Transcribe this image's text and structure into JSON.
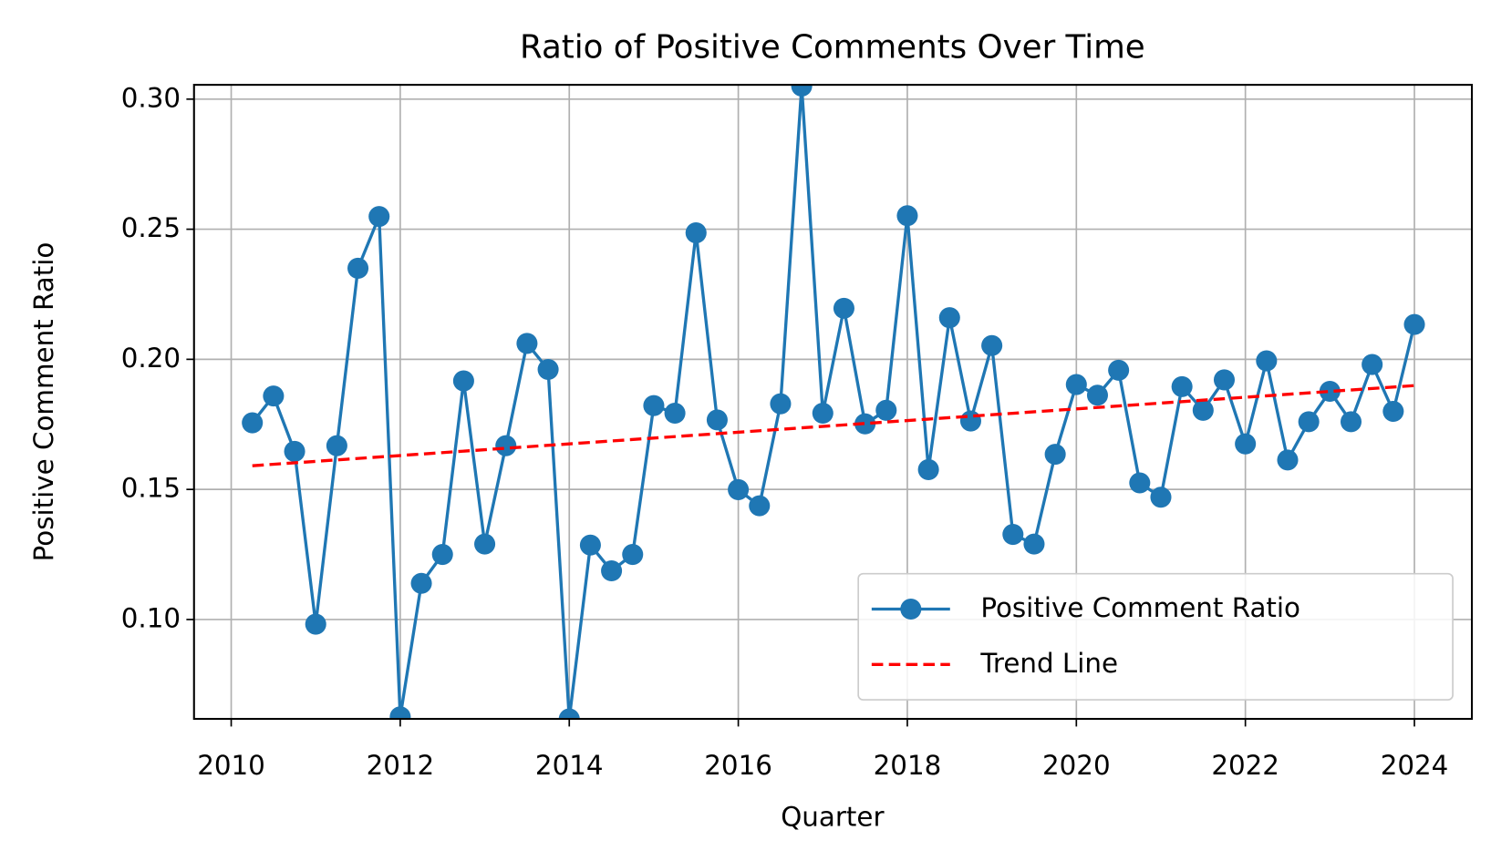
{
  "chart_data": {
    "type": "line",
    "title": "Ratio of Positive Comments Over Time",
    "xlabel": "Quarter",
    "ylabel": "Positive Comment Ratio",
    "xlim": [
      2009.56,
      2024.68
    ],
    "ylim": [
      0.0618,
      0.3055
    ],
    "xticks": [
      2010,
      2012,
      2014,
      2016,
      2018,
      2020,
      2022,
      2024
    ],
    "yticks": [
      {
        "value": 0.1,
        "label": "0.10"
      },
      {
        "value": 0.15,
        "label": "0.15"
      },
      {
        "value": 0.2,
        "label": "0.20"
      },
      {
        "value": 0.25,
        "label": "0.25"
      },
      {
        "value": 0.3,
        "label": "0.30"
      }
    ],
    "grid": true,
    "legend": "lower right",
    "series": [
      {
        "name": "Positive Comment Ratio",
        "color": "#1f77b4",
        "style": "solid",
        "marker": "circle",
        "x": [
          2010.25,
          2010.5,
          2010.75,
          2011,
          2011.25,
          2011.5,
          2011.75,
          2012,
          2012.25,
          2012.5,
          2012.75,
          2013,
          2013.25,
          2013.5,
          2013.75,
          2014,
          2014.25,
          2014.5,
          2014.75,
          2015,
          2015.25,
          2015.5,
          2015.75,
          2016,
          2016.25,
          2016.5,
          2016.75,
          2017,
          2017.25,
          2017.5,
          2017.75,
          2018,
          2018.25,
          2018.5,
          2018.75,
          2019,
          2019.25,
          2019.5,
          2019.75,
          2020,
          2020.25,
          2020.5,
          2020.75,
          2021,
          2021.25,
          2021.5,
          2021.75,
          2022,
          2022.25,
          2022.5,
          2022.75,
          2023,
          2023.25,
          2023.5,
          2023.75,
          2024
        ],
        "values": [
          0.1756,
          0.1859,
          0.1646,
          0.0982,
          0.1668,
          0.235,
          0.2549,
          0.0626,
          0.1139,
          0.125,
          0.1917,
          0.129,
          0.1668,
          0.2061,
          0.1961,
          0.0618,
          0.1286,
          0.1187,
          0.125,
          0.1822,
          0.1793,
          0.2486,
          0.1767,
          0.1499,
          0.1437,
          0.1829,
          0.305,
          0.1793,
          0.2196,
          0.1752,
          0.1804,
          0.2552,
          0.1576,
          0.216,
          0.1763,
          0.2053,
          0.1327,
          0.129,
          0.1635,
          0.1903,
          0.1862,
          0.1958,
          0.1525,
          0.147,
          0.1895,
          0.1804,
          0.1921,
          0.1675,
          0.1994,
          0.1613,
          0.176,
          0.1877,
          0.176,
          0.198,
          0.18,
          0.2134
        ]
      },
      {
        "name": "Trend Line",
        "color": "#ff0000",
        "style": "dashed",
        "x": [
          2010.25,
          2024
        ],
        "values": [
          0.1591,
          0.1899
        ]
      }
    ]
  }
}
